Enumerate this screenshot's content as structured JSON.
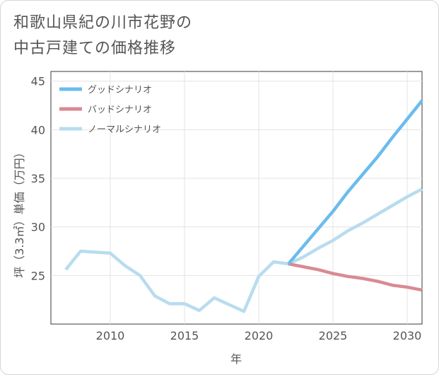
{
  "title": {
    "line1": "和歌山県紀の川市花野の",
    "line2": "中古戸建ての価格推移"
  },
  "chart_data": {
    "type": "line",
    "xlabel": "年",
    "ylabel": "坪（3.3㎡）単価（万円）",
    "xlim": [
      2006,
      2031
    ],
    "ylim": [
      20,
      46
    ],
    "x_ticks": [
      2010,
      2015,
      2020,
      2025,
      2030
    ],
    "y_ticks": [
      25,
      30,
      35,
      40,
      45
    ],
    "grid": true,
    "legend_position": "top-left",
    "series": [
      {
        "name": "グッドシナリオ",
        "color": "#6bbcec",
        "x": [
          2022,
          2023,
          2024,
          2025,
          2026,
          2027,
          2028,
          2029,
          2030,
          2031
        ],
        "y": [
          26.2,
          28.0,
          29.8,
          31.6,
          33.6,
          35.4,
          37.2,
          39.2,
          41.1,
          43.0
        ]
      },
      {
        "name": "バッドシナリオ",
        "color": "#d98a93",
        "x": [
          2022,
          2023,
          2024,
          2025,
          2026,
          2027,
          2028,
          2029,
          2030,
          2031
        ],
        "y": [
          26.2,
          25.9,
          25.6,
          25.2,
          24.9,
          24.7,
          24.4,
          24.0,
          23.8,
          23.5
        ]
      },
      {
        "name": "ノーマルシナリオ",
        "color": "#b9dcee",
        "x": [
          2007,
          2008,
          2009,
          2010,
          2011,
          2012,
          2013,
          2014,
          2015,
          2016,
          2017,
          2018,
          2019,
          2020,
          2021,
          2022,
          2023,
          2024,
          2025,
          2026,
          2027,
          2028,
          2029,
          2030,
          2031
        ],
        "y": [
          25.6,
          27.5,
          27.4,
          27.3,
          26.0,
          25.0,
          22.9,
          22.1,
          22.1,
          21.4,
          22.7,
          22.0,
          21.3,
          24.9,
          26.4,
          26.2,
          26.9,
          27.8,
          28.6,
          29.6,
          30.4,
          31.3,
          32.2,
          33.1,
          33.9
        ]
      }
    ]
  }
}
